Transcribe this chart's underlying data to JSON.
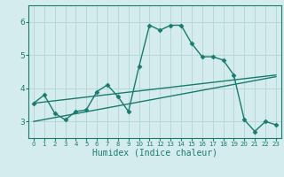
{
  "bg_color": "#d4ecee",
  "line_color": "#1a7a6e",
  "grid_color": "#b8d8d8",
  "xlabel": "Humidex (Indice chaleur)",
  "xlim": [
    -0.5,
    23.5
  ],
  "ylim": [
    2.5,
    6.5
  ],
  "yticks": [
    3,
    4,
    5,
    6
  ],
  "xticks": [
    0,
    1,
    2,
    3,
    4,
    5,
    6,
    7,
    8,
    9,
    10,
    11,
    12,
    13,
    14,
    15,
    16,
    17,
    18,
    19,
    20,
    21,
    22,
    23
  ],
  "series1_x": [
    0,
    1,
    2,
    3,
    4,
    5,
    6,
    7,
    8,
    9,
    10,
    11,
    12,
    13,
    14,
    15,
    16,
    17,
    18,
    19,
    20,
    21,
    22,
    23
  ],
  "series1_y": [
    3.55,
    3.8,
    3.25,
    3.05,
    3.3,
    3.35,
    3.9,
    4.1,
    3.75,
    3.3,
    4.65,
    5.9,
    5.75,
    5.9,
    5.9,
    5.35,
    4.95,
    4.95,
    4.85,
    4.4,
    3.05,
    2.7,
    3.0,
    2.9
  ],
  "series2_x": [
    0,
    23
  ],
  "series2_y": [
    3.55,
    4.4
  ],
  "series3_x": [
    0,
    23
  ],
  "series3_y": [
    3.0,
    4.35
  ],
  "marker": "D",
  "markersize": 2.5,
  "linewidth": 1.0
}
